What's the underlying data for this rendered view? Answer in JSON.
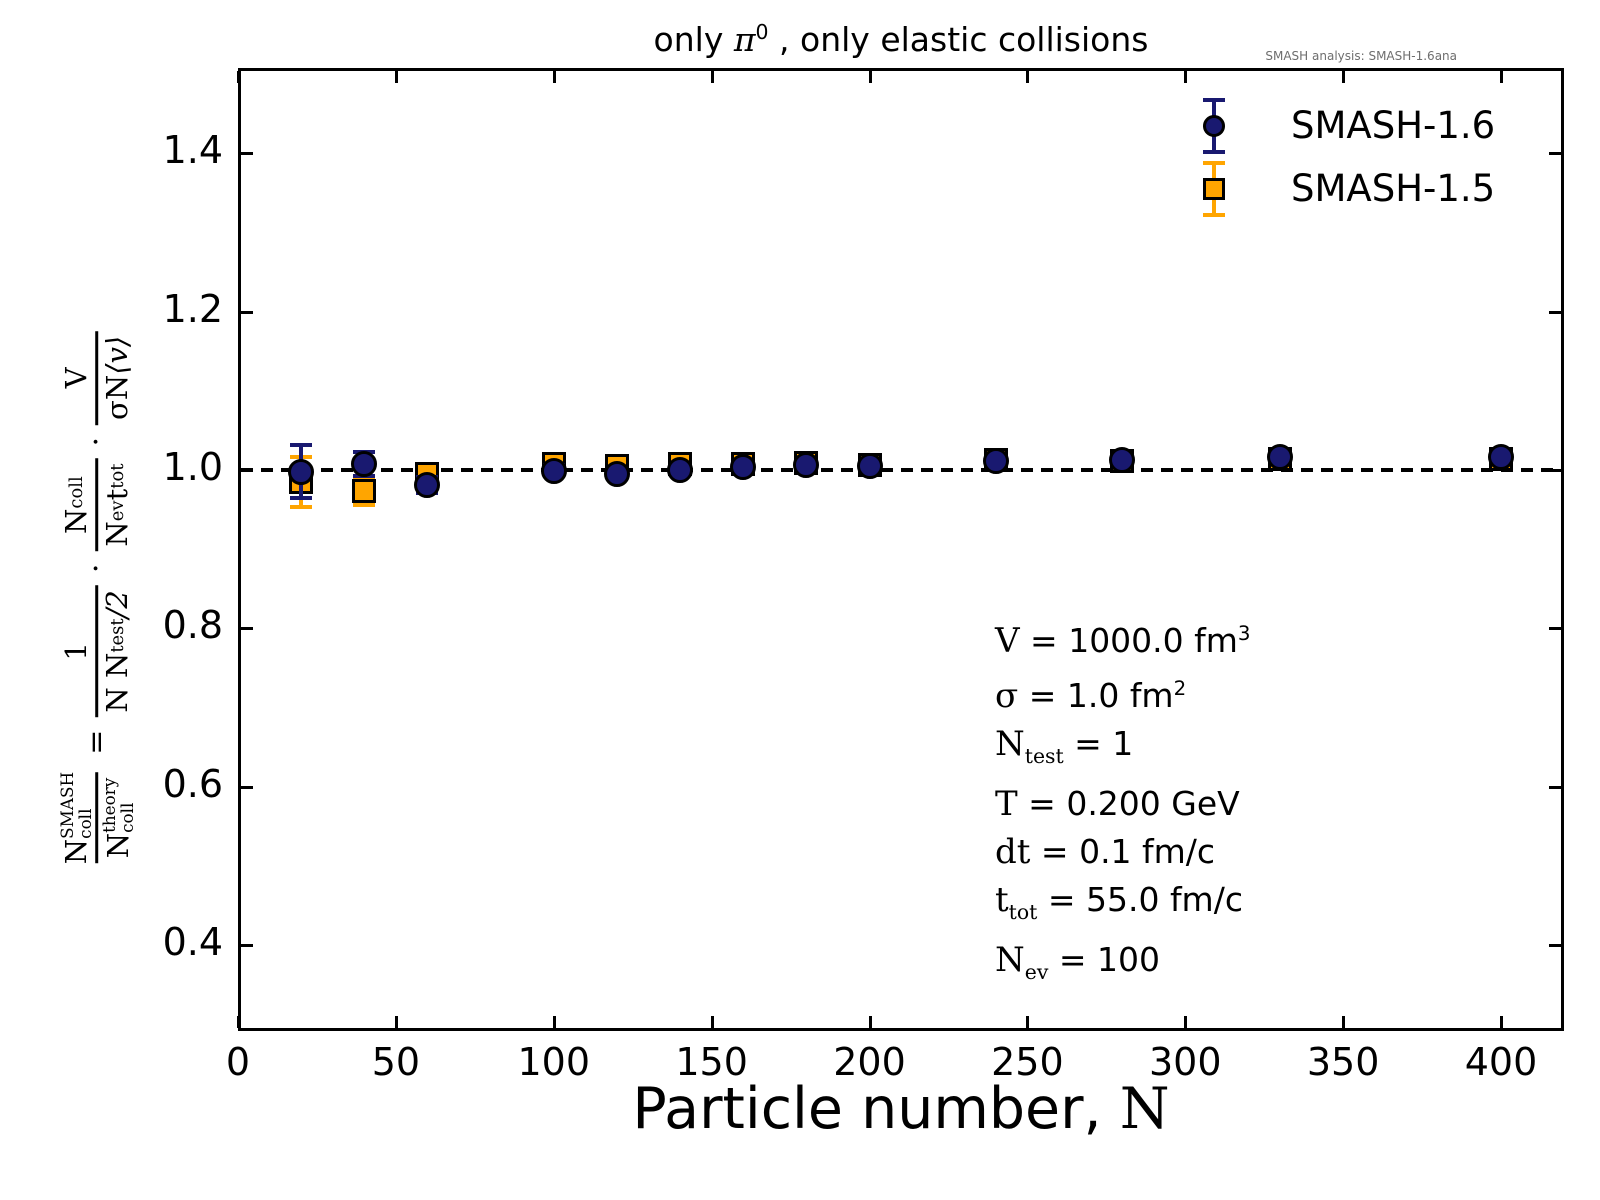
{
  "title": {
    "pre": "only ",
    "pi": "π",
    "pi_sup": "0",
    "post": " , only elastic collisions"
  },
  "watermark": "SMASH analysis: SMASH-1.6ana",
  "xlabel": {
    "text": "Particle number, ",
    "math": "N"
  },
  "ylabel": {
    "eq": "=",
    "dot1": "·",
    "dot2": "·",
    "lhs": {
      "num_base": "N",
      "num_sup": "SMASH",
      "num_sub": "coll",
      "den_base": "N",
      "den_sup": "theory",
      "den_sub": "coll"
    },
    "f1": {
      "num": "1",
      "den_base": "N N",
      "den_sub": "test",
      "den_tail": " /2"
    },
    "f2": {
      "num_base": "N",
      "num_sub": "coll",
      "den1_base": "N",
      "den1_sub": "ev",
      "den2_base": "t",
      "den2_sub": "tot"
    },
    "f3": {
      "num": "V",
      "den_base": "σN ",
      "den_tail": "⟨v⟩"
    }
  },
  "legend": {
    "items": [
      {
        "label": "SMASH-1.6",
        "marker": "circle",
        "color": "#191970"
      },
      {
        "label": "SMASH-1.5",
        "marker": "square",
        "color": "#FFA500"
      }
    ]
  },
  "annotation": {
    "eq": "=",
    "lines": [
      {
        "var": "V",
        "sub": "",
        "value": "1000.0 fm",
        "sup": "3"
      },
      {
        "var": "σ",
        "sub": "",
        "value": "1.0 fm",
        "sup": "2"
      },
      {
        "var": "N",
        "sub": "test",
        "value": "1",
        "sup": ""
      },
      {
        "var": "T",
        "sub": "",
        "value": "0.200 GeV",
        "sup": ""
      },
      {
        "var": "dt",
        "sub": "",
        "value": "0.1 fm/c",
        "sup": ""
      },
      {
        "var": "t",
        "sub": "tot",
        "value": "55.0 fm/c",
        "sup": ""
      },
      {
        "var": "N",
        "sub": "ev",
        "value": "100",
        "sup": ""
      }
    ]
  },
  "chart_data": {
    "type": "scatter",
    "title": "only π⁰ , only elastic collisions",
    "xlabel": "Particle number, N",
    "ylabel": "N_coll^SMASH / N_coll^theory = 1/(N N_test/2) · N_coll/(N_ev t_tot) · V/(σN ⟨v⟩)",
    "xlim": [
      0,
      420
    ],
    "ylim": [
      0.29,
      1.51
    ],
    "x_ticks": [
      0,
      50,
      100,
      150,
      200,
      250,
      300,
      350,
      400
    ],
    "x_tick_labels": [
      "0",
      "50",
      "100",
      "150",
      "200",
      "250",
      "300",
      "350",
      "400"
    ],
    "y_ticks": [
      0.4,
      0.6,
      0.8,
      1.0,
      1.2,
      1.4
    ],
    "y_tick_labels": [
      "0.4",
      "0.6",
      "0.8",
      "1.0",
      "1.2",
      "1.4"
    ],
    "reference_line_y": 1.0,
    "grid": false,
    "legend_position": "upper right",
    "series": [
      {
        "name": "SMASH-1.6",
        "marker": "circle",
        "color": "#191970",
        "edge_color": "#000000",
        "x": [
          20,
          40,
          60,
          100,
          120,
          140,
          160,
          180,
          200,
          240,
          280,
          330,
          400
        ],
        "y": [
          0.998,
          1.008,
          0.981,
          0.999,
          0.995,
          1.0,
          1.004,
          1.006,
          1.005,
          1.011,
          1.013,
          1.016,
          1.017
        ],
        "yerr": [
          0.033,
          0.015,
          0.01,
          0.007,
          0.006,
          0.005,
          0.005,
          0.004,
          0.004,
          0.004,
          0.003,
          0.003,
          0.003
        ]
      },
      {
        "name": "SMASH-1.5",
        "marker": "square",
        "color": "#FFA500",
        "edge_color": "#000000",
        "x": [
          20,
          40,
          60,
          100,
          120,
          140,
          160,
          180,
          200,
          240,
          280,
          330,
          400
        ],
        "y": [
          0.985,
          0.973,
          0.995,
          1.008,
          1.005,
          1.008,
          1.008,
          1.009,
          1.006,
          1.013,
          1.011,
          1.014,
          1.014
        ],
        "yerr": [
          0.032,
          0.017,
          0.01,
          0.007,
          0.006,
          0.005,
          0.005,
          0.004,
          0.004,
          0.004,
          0.003,
          0.003,
          0.003
        ]
      }
    ]
  }
}
